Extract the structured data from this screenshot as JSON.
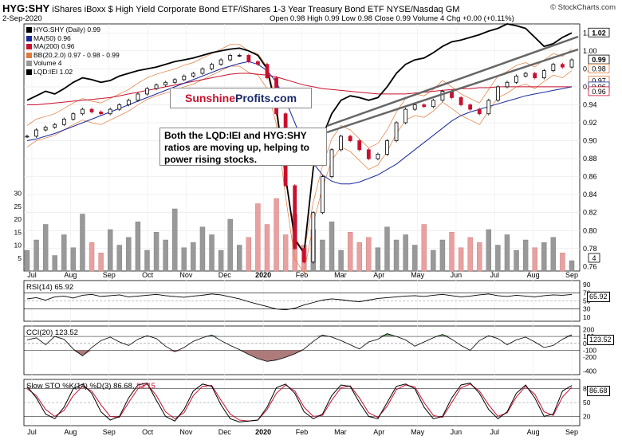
{
  "header": {
    "symbol": "HYG:SHY",
    "description": "iShares iBoxx $ High Yield Corporate Bond ETF/iShares 1-3 Year Treasury Bond ETF",
    "exchange": "NYSE/Nasdaq GM",
    "date": "2-Sep-2020",
    "open_label": "Open",
    "open": "0.98",
    "high_label": "High",
    "high": "0.99",
    "low_label": "Low",
    "low": "0.98",
    "close_label": "Close",
    "close": "0.99",
    "volume_label": "Volume",
    "volume": "4",
    "chg_label": "Chg",
    "chg": "+0.00 (+0.11%)",
    "copyright": "© StockCharts.com"
  },
  "legend": [
    {
      "text": "HYG:SHY (Daily) 0.99",
      "color": "#000000"
    },
    {
      "text": "MA(50) 0.96",
      "color": "#1a2a9c"
    },
    {
      "text": "MA(200) 0.96",
      "color": "#c8102e"
    },
    {
      "text": "BB(20,2.0) 0.97 - 0.98 - 0.99",
      "color": "#e07a3a"
    },
    {
      "text": "Volume 4",
      "color": "#999999"
    },
    {
      "text": "LQD:IEI 1.02",
      "color": "#000000"
    }
  ],
  "logo": {
    "part1": "Sunshine",
    "part2": "Profits.com"
  },
  "annotation": "Both the LQD:IEI and HYG:SHY ratios are moving up, helping to power rising stocks.",
  "colors": {
    "up": "#000000",
    "down": "#c8102e",
    "ma50": "#1a2a9c",
    "ma200": "#c8102e",
    "bb": "#e07a3a",
    "vol_up": "#999999",
    "vol_down": "#e8a0a0"
  },
  "x_labels": [
    "Jul",
    "Aug",
    "Sep",
    "Oct",
    "Nov",
    "Dec",
    "2020",
    "Feb",
    "Mar",
    "Apr",
    "May",
    "Jun",
    "Jul",
    "Aug",
    "Sep"
  ],
  "main_y_ticks": [
    "1.02",
    "1.00",
    "0.98",
    "0.96",
    "0.94",
    "0.92",
    "0.90",
    "0.88",
    "0.86",
    "0.84",
    "0.82",
    "0.80",
    "0.78",
    "0.76"
  ],
  "volume_ticks": [
    "30",
    "25",
    "20",
    "15",
    "10",
    "5"
  ],
  "price_badges": [
    "1.02",
    "0.99",
    "0.98",
    "0.97",
    "0.96",
    "0.96"
  ],
  "volume_badge": "4",
  "rsi": {
    "title": "RSI(14) 65.92",
    "ticks": [
      "90",
      "70",
      "50",
      "30",
      "10"
    ],
    "badge": "65.92"
  },
  "cci": {
    "title": "CCI(20) 123.52",
    "ticks": [
      "200",
      "100",
      "0",
      "-100",
      "-200",
      "-400"
    ],
    "badge": "123.52"
  },
  "sto": {
    "title_prefix": "Slow STO %K(14) %D(3) 86.68,",
    "title_d": "83.15",
    "ticks": [
      "80",
      "50",
      "20"
    ],
    "badge": "86.68"
  },
  "chart_data": {
    "type": "line",
    "title": "HYG:SHY (Daily)",
    "main_ylim": [
      0.755,
      1.03
    ],
    "hyg_shy": [
      0.905,
      0.912,
      0.915,
      0.918,
      0.924,
      0.93,
      0.935,
      0.932,
      0.93,
      0.935,
      0.94,
      0.945,
      0.952,
      0.958,
      0.962,
      0.965,
      0.968,
      0.972,
      0.975,
      0.98,
      0.985,
      0.99,
      0.995,
      0.995,
      0.988,
      0.985,
      0.97,
      0.93,
      0.85,
      0.78,
      0.765,
      0.82,
      0.86,
      0.89,
      0.905,
      0.9,
      0.89,
      0.88,
      0.885,
      0.9,
      0.92,
      0.935,
      0.94,
      0.938,
      0.945,
      0.955,
      0.948,
      0.94,
      0.935,
      0.93,
      0.945,
      0.96,
      0.965,
      0.972,
      0.975,
      0.97,
      0.978,
      0.985,
      0.982,
      0.99
    ],
    "lqd_iei": [
      0.945,
      0.95,
      0.955,
      0.952,
      0.958,
      0.965,
      0.97,
      0.968,
      0.965,
      0.967,
      0.972,
      0.975,
      0.978,
      0.98,
      0.982,
      0.985,
      0.988,
      0.99,
      0.992,
      0.995,
      0.998,
      1.0,
      1.002,
      1.003,
      1.0,
      0.995,
      0.98,
      0.935,
      0.86,
      0.79,
      0.775,
      0.87,
      0.905,
      0.93,
      0.945,
      0.95,
      0.948,
      0.945,
      0.948,
      0.96,
      0.975,
      0.985,
      0.99,
      0.992,
      0.998,
      1.005,
      1.01,
      1.012,
      1.015,
      1.018,
      1.022,
      1.025,
      1.03,
      1.028,
      1.025,
      1.015,
      1.005,
      1.008,
      1.015,
      1.02
    ],
    "ma50": [
      0.9,
      0.902,
      0.905,
      0.908,
      0.912,
      0.916,
      0.92,
      0.924,
      0.928,
      0.932,
      0.936,
      0.94,
      0.944,
      0.948,
      0.952,
      0.956,
      0.96,
      0.964,
      0.968,
      0.972,
      0.976,
      0.98,
      0.983,
      0.986,
      0.988,
      0.985,
      0.978,
      0.965,
      0.945,
      0.92,
      0.895,
      0.875,
      0.862,
      0.855,
      0.852,
      0.852,
      0.854,
      0.858,
      0.862,
      0.868,
      0.874,
      0.882,
      0.89,
      0.898,
      0.906,
      0.914,
      0.922,
      0.928,
      0.932,
      0.935,
      0.938,
      0.941,
      0.944,
      0.947,
      0.95,
      0.952,
      0.954,
      0.956,
      0.958,
      0.96
    ],
    "ma200": [
      0.94,
      0.94,
      0.941,
      0.942,
      0.943,
      0.944,
      0.945,
      0.946,
      0.947,
      0.948,
      0.95,
      0.952,
      0.954,
      0.956,
      0.958,
      0.96,
      0.962,
      0.964,
      0.966,
      0.968,
      0.97,
      0.972,
      0.974,
      0.975,
      0.975,
      0.974,
      0.973,
      0.971,
      0.968,
      0.965,
      0.962,
      0.96,
      0.958,
      0.957,
      0.956,
      0.955,
      0.954,
      0.953,
      0.952,
      0.952,
      0.952,
      0.952,
      0.953,
      0.954,
      0.955,
      0.956,
      0.957,
      0.958,
      0.958,
      0.959,
      0.959,
      0.96,
      0.96,
      0.96,
      0.96,
      0.96,
      0.96,
      0.96,
      0.96,
      0.96
    ],
    "volume": [
      8,
      12,
      18,
      6,
      14,
      9,
      22,
      11,
      7,
      16,
      10,
      13,
      19,
      8,
      15,
      12,
      24,
      9,
      11,
      17,
      14,
      8,
      20,
      10,
      13,
      26,
      18,
      28,
      14,
      22,
      10,
      16,
      12,
      19,
      8,
      15,
      11,
      13,
      9,
      17,
      12,
      14,
      10,
      18,
      8,
      12,
      15,
      9,
      13,
      11,
      16,
      10,
      14,
      8,
      12,
      9,
      11,
      13,
      7,
      4
    ],
    "rsi_ylim": [
      0,
      100
    ],
    "rsi": [
      55,
      58,
      52,
      60,
      62,
      57,
      64,
      66,
      61,
      63,
      65,
      60,
      62,
      64,
      66,
      63,
      61,
      59,
      62,
      64,
      67,
      65,
      60,
      55,
      48,
      42,
      36,
      30,
      28,
      32,
      40,
      46,
      52,
      55,
      53,
      50,
      48,
      52,
      56,
      58,
      60,
      62,
      63,
      61,
      64,
      66,
      63,
      60,
      62,
      65,
      67,
      63,
      61,
      64,
      62,
      60,
      63,
      65,
      64,
      65.92
    ],
    "cci_ylim": [
      -450,
      250
    ],
    "cci": [
      50,
      80,
      -20,
      100,
      60,
      -80,
      -180,
      -60,
      40,
      90,
      20,
      -30,
      60,
      110,
      70,
      -40,
      -120,
      -60,
      30,
      80,
      120,
      40,
      -30,
      -90,
      -160,
      -220,
      -260,
      -240,
      -200,
      -150,
      -80,
      30,
      120,
      90,
      40,
      -20,
      -80,
      20,
      60,
      140,
      100,
      50,
      -40,
      20,
      80,
      130,
      60,
      -30,
      -100,
      40,
      110,
      70,
      -20,
      50,
      90,
      20,
      -60,
      -30,
      60,
      123.52
    ],
    "sto_ylim": [
      0,
      100
    ],
    "sto_k": [
      85,
      60,
      25,
      15,
      40,
      80,
      90,
      70,
      30,
      12,
      20,
      60,
      88,
      92,
      55,
      20,
      10,
      35,
      75,
      90,
      85,
      45,
      15,
      8,
      10,
      12,
      40,
      82,
      90,
      70,
      30,
      15,
      25,
      65,
      88,
      85,
      50,
      20,
      15,
      50,
      85,
      90,
      80,
      40,
      15,
      20,
      60,
      88,
      92,
      70,
      35,
      15,
      30,
      70,
      88,
      60,
      20,
      25,
      75,
      86.68
    ],
    "sto_d": [
      80,
      65,
      35,
      20,
      33,
      65,
      85,
      75,
      45,
      20,
      18,
      50,
      80,
      90,
      65,
      30,
      15,
      28,
      65,
      85,
      87,
      55,
      25,
      12,
      10,
      12,
      35,
      70,
      88,
      75,
      40,
      20,
      22,
      55,
      82,
      86,
      60,
      28,
      18,
      42,
      78,
      88,
      84,
      50,
      22,
      18,
      50,
      82,
      90,
      75,
      45,
      20,
      28,
      62,
      85,
      68,
      30,
      22,
      62,
      83.15
    ]
  }
}
